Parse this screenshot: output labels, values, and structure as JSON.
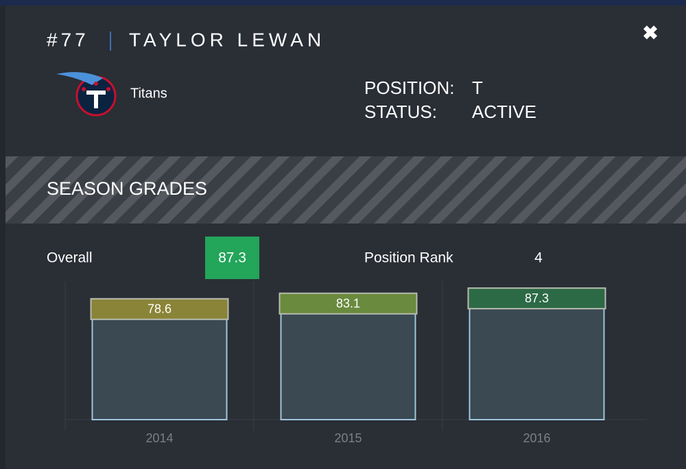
{
  "header": {
    "number": "#77",
    "name": "TAYLOR LEWAN"
  },
  "team": "Titans",
  "position": {
    "label": "POSITION:",
    "value": "T"
  },
  "status": {
    "label": "STATUS:",
    "value": "ACTIVE"
  },
  "section_title": "SEASON GRADES",
  "overall": {
    "label": "Overall",
    "value": 87.3
  },
  "position_rank": {
    "label": "Position Rank",
    "value": 4
  },
  "chart_data": {
    "type": "bar",
    "categories": [
      "2014",
      "2015",
      "2016"
    ],
    "values": [
      78.6,
      83.1,
      87.3
    ],
    "colors": [
      "#8a8438",
      "#6a8a3e",
      "#2c6a46"
    ],
    "ylim": [
      -20,
      93
    ]
  }
}
